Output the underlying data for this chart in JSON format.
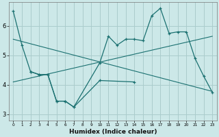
{
  "xlabel": "Humidex (Indice chaleur)",
  "background_color": "#cce8e8",
  "grid_color": "#aacccc",
  "line_color": "#1a7070",
  "line1_x": [
    0,
    1,
    2,
    3,
    4,
    5,
    6,
    7,
    10,
    11,
    12,
    13,
    14,
    15,
    16,
    17,
    18,
    19,
    20,
    21,
    22,
    23
  ],
  "line1_y": [
    6.5,
    5.35,
    4.45,
    4.35,
    4.35,
    3.45,
    3.45,
    3.25,
    4.75,
    5.65,
    5.35,
    5.55,
    5.55,
    5.5,
    6.35,
    6.6,
    5.75,
    5.8,
    5.8,
    4.9,
    4.3,
    3.75
  ],
  "line2_x": [
    2,
    3,
    4,
    5,
    6,
    7,
    10,
    14
  ],
  "line2_y": [
    4.45,
    4.35,
    4.35,
    3.45,
    3.45,
    3.25,
    4.15,
    4.1
  ],
  "trend1_x": [
    0,
    23
  ],
  "trend1_y": [
    5.55,
    3.78
  ],
  "trend2_x": [
    0,
    23
  ],
  "trend2_y": [
    4.1,
    5.65
  ],
  "ylim": [
    2.8,
    6.8
  ],
  "xlim": [
    -0.5,
    23.5
  ],
  "yticks": [
    3,
    4,
    5,
    6
  ]
}
